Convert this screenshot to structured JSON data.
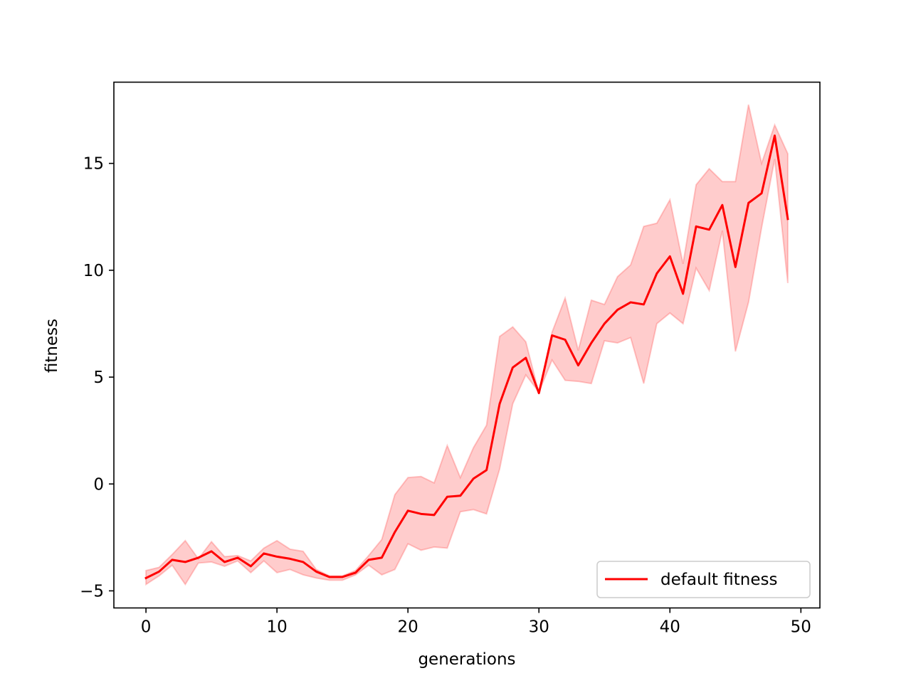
{
  "chart_data": {
    "type": "line",
    "title": "",
    "xlabel": "generations",
    "ylabel": "fitness",
    "xlim": [
      -2.45,
      51.45
    ],
    "ylim": [
      -5.8,
      18.8
    ],
    "xticks": [
      0,
      10,
      20,
      30,
      40,
      50
    ],
    "yticks": [
      -5,
      0,
      5,
      10,
      15
    ],
    "xtick_labels": [
      "0",
      "10",
      "20",
      "30",
      "40",
      "50"
    ],
    "ytick_labels": [
      "−5",
      "0",
      "5",
      "10",
      "15"
    ],
    "grid": false,
    "legend_position": "lower-right",
    "series": [
      {
        "name": "default fitness",
        "color": "#ff0000",
        "x": [
          0,
          1,
          2,
          3,
          4,
          5,
          6,
          7,
          8,
          9,
          10,
          11,
          12,
          13,
          14,
          15,
          16,
          17,
          18,
          19,
          20,
          21,
          22,
          23,
          24,
          25,
          26,
          27,
          28,
          29,
          30,
          31,
          32,
          33,
          34,
          35,
          36,
          37,
          38,
          39,
          40,
          41,
          42,
          43,
          44,
          45,
          46,
          47,
          48,
          49
        ],
        "y": [
          -4.4,
          -4.1,
          -3.55,
          -3.65,
          -3.45,
          -3.15,
          -3.65,
          -3.45,
          -3.85,
          -3.25,
          -3.4,
          -3.5,
          -3.65,
          -4.1,
          -4.35,
          -4.35,
          -4.15,
          -3.55,
          -3.45,
          -2.25,
          -1.25,
          -1.4,
          -1.45,
          -0.6,
          -0.55,
          0.25,
          0.65,
          3.75,
          5.45,
          5.9,
          4.25,
          6.95,
          6.75,
          5.55,
          6.6,
          7.5,
          8.15,
          8.5,
          8.4,
          9.85,
          10.65,
          8.9,
          12.05,
          11.9,
          13.05,
          10.15,
          13.15,
          13.6,
          16.3,
          12.4
        ],
        "band_lower": [
          -4.7,
          -4.3,
          -3.8,
          -4.7,
          -3.7,
          -3.65,
          -3.85,
          -3.6,
          -4.15,
          -3.6,
          -4.15,
          -4.0,
          -4.25,
          -4.4,
          -4.5,
          -4.5,
          -4.25,
          -3.8,
          -4.25,
          -4.0,
          -2.8,
          -3.1,
          -2.95,
          -3.0,
          -1.3,
          -1.2,
          -1.4,
          0.7,
          3.75,
          5.1,
          4.3,
          5.8,
          4.85,
          4.8,
          4.7,
          6.7,
          6.6,
          6.85,
          4.7,
          7.5,
          8.0,
          7.5,
          10.1,
          9.05,
          11.85,
          6.2,
          8.5,
          12.0,
          15.2,
          9.4
        ],
        "band_upper": [
          -4.05,
          -3.9,
          -3.3,
          -2.65,
          -3.5,
          -2.7,
          -3.4,
          -3.35,
          -3.6,
          -3.0,
          -2.65,
          -3.05,
          -3.15,
          -4.0,
          -4.3,
          -4.3,
          -4.05,
          -3.35,
          -2.6,
          -0.5,
          0.3,
          0.35,
          0.05,
          1.8,
          0.3,
          1.7,
          2.75,
          6.9,
          7.35,
          6.65,
          4.25,
          7.1,
          8.7,
          6.25,
          8.6,
          8.4,
          9.7,
          10.25,
          12.05,
          12.2,
          13.3,
          10.3,
          14.0,
          14.75,
          14.15,
          14.15,
          17.75,
          15.0,
          16.8,
          15.45
        ]
      }
    ]
  }
}
